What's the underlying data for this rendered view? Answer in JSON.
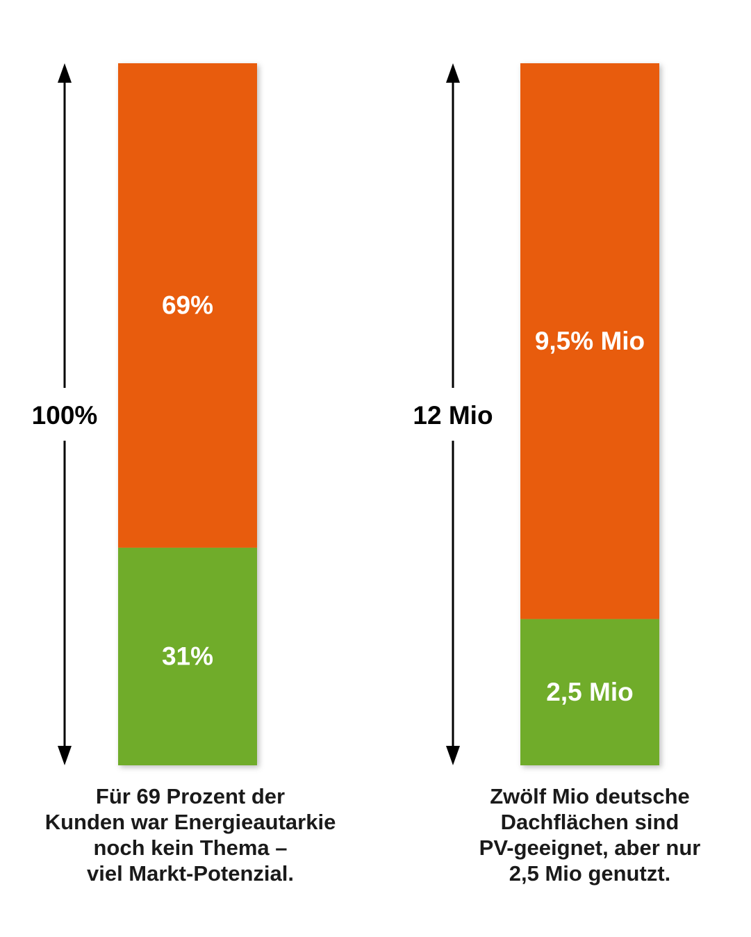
{
  "colors": {
    "remaining": "#e85b0f",
    "share": "#6fac2a",
    "label": "#ffffff",
    "axis": "#000000",
    "text": "#1a1a1a"
  },
  "chart_data": [
    {
      "type": "bar",
      "stacked": true,
      "total_label": "100%",
      "segments": [
        {
          "value": 31,
          "label": "31%",
          "color": "#6fac2a"
        },
        {
          "value": 69,
          "label": "69%",
          "color": "#e85b0f"
        }
      ],
      "caption": [
        "Für 69 Prozent der",
        "Kunden war Energieautarkie",
        "noch kein Thema –",
        "viel Markt-Potenzial."
      ]
    },
    {
      "type": "bar",
      "stacked": true,
      "total_label": "12 Mio",
      "segments": [
        {
          "value": 2.5,
          "label": "2,5 Mio",
          "color": "#6fac2a"
        },
        {
          "value": 9.5,
          "label": "9,5% Mio",
          "color": "#e85b0f"
        }
      ],
      "caption": [
        "Zwölf Mio deutsche",
        "Dachflächen sind",
        "PV-geeignet, aber nur",
        "2,5 Mio genutzt."
      ]
    }
  ]
}
